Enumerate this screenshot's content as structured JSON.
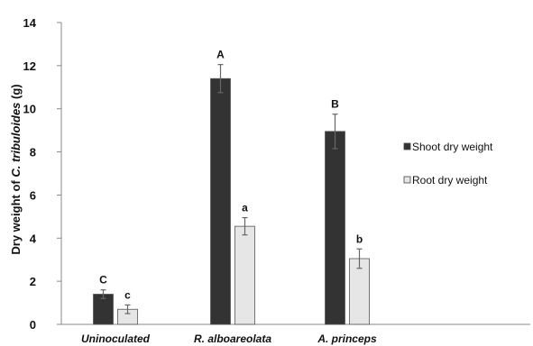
{
  "chart_data": {
    "type": "bar",
    "ylabel_prefix": "Dry weight of ",
    "ylabel_species": "C. tribuloides",
    "ylabel_suffix": " (g)",
    "ylim": [
      0,
      14
    ],
    "yticks": [
      "0",
      "2",
      "4",
      "6",
      "8",
      "10",
      "12",
      "14"
    ],
    "categories": [
      "Uninoculated",
      "R. alboareolata",
      "A. princeps"
    ],
    "series": [
      {
        "name": "Shoot dry weight",
        "color": "#333333",
        "values": [
          1.4,
          11.4,
          8.95
        ],
        "errors": [
          0.2,
          0.65,
          0.8
        ],
        "labels": [
          "C",
          "A",
          "B"
        ]
      },
      {
        "name": "Root dry weight",
        "color": "#e6e6e6",
        "values": [
          0.7,
          4.55,
          3.05
        ],
        "errors": [
          0.2,
          0.4,
          0.45
        ],
        "labels": [
          "c",
          "a",
          "b"
        ]
      }
    ],
    "legend_position": "right",
    "grid": false
  }
}
